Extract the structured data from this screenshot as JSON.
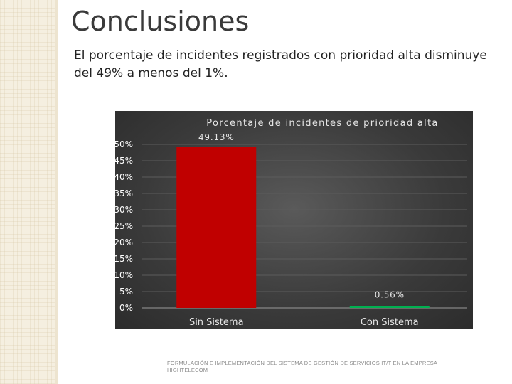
{
  "slide": {
    "title": "Conclusiones",
    "body_text": "El porcentaje de incidentes registrados con prioridad alta disminuye del 49% a menos del 1%.",
    "footer": "FORMULACIÓN E IMPLEMENTACIÓN DEL SISTEMA DE GESTIÓN DE SERVICIOS IT/T EN LA EMPRESA HIGHTELECOM"
  },
  "colors": {
    "bar_sin": "#c00000",
    "bar_con": "#00b050",
    "chart_bg": "#3a3a3a"
  },
  "chart_data": {
    "type": "bar",
    "title": "Porcentaje de incidentes de prioridad alta",
    "categories": [
      "Sin Sistema",
      "Con Sistema"
    ],
    "values": [
      49.13,
      0.56
    ],
    "data_labels": [
      "49.13%",
      "0.56%"
    ],
    "ylim": [
      0,
      50
    ],
    "y_ticks": [
      0,
      5,
      10,
      15,
      20,
      25,
      30,
      35,
      40,
      45,
      50
    ],
    "y_tick_labels": [
      "0%",
      "5%",
      "10%",
      "15%",
      "20%",
      "25%",
      "30%",
      "35%",
      "40%",
      "45%",
      "50%"
    ],
    "grid": true,
    "legend": "none"
  }
}
